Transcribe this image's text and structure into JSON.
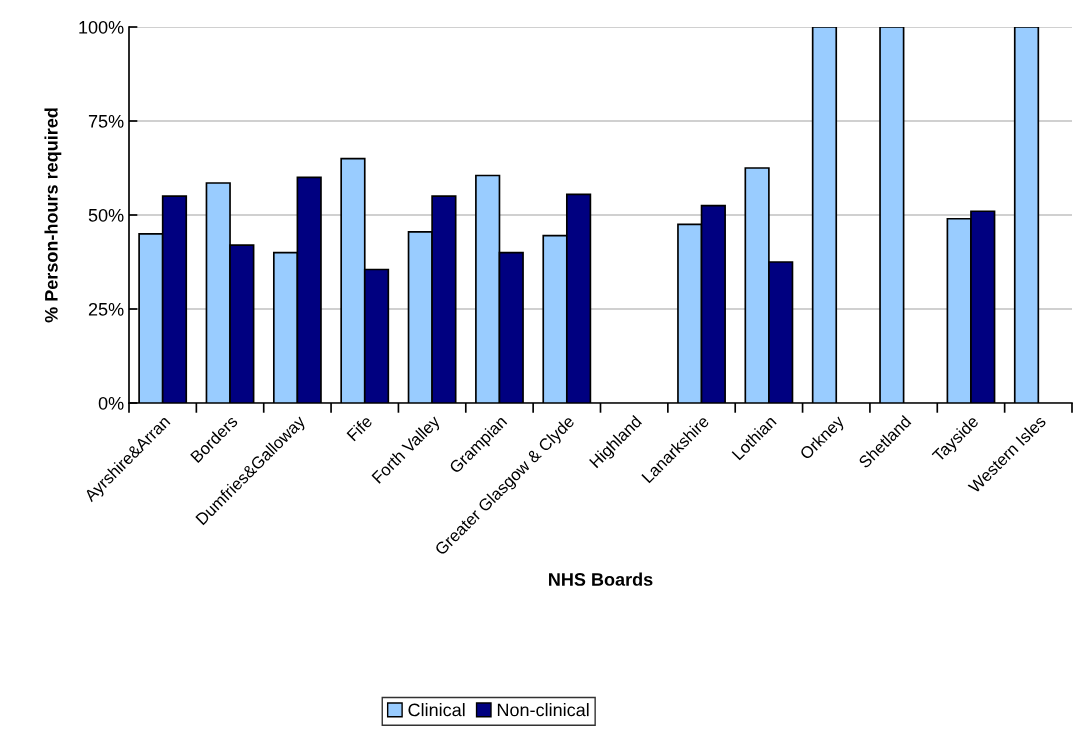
{
  "chart_data": {
    "type": "bar",
    "xlabel": "NHS Boards",
    "ylabel": "% Person-hours required",
    "categories": [
      "Ayrshire&Arran",
      "Borders",
      "Dumfries&Galloway",
      "Fife",
      "Forth Valley",
      "Grampian",
      "Greater Glasgow & Clyde",
      "Highland",
      "Lanarkshire",
      "Lothian",
      "Orkney",
      "Shetland",
      "Tayside",
      "Western Isles"
    ],
    "series": [
      {
        "name": "Clinical",
        "color": "#99ccff",
        "values": [
          45,
          58.5,
          40,
          65,
          45.5,
          60.5,
          44.5,
          null,
          47.5,
          62.5,
          100,
          100,
          49,
          100
        ]
      },
      {
        "name": "Non-clinical",
        "color": "#000080",
        "values": [
          55,
          42,
          60,
          35.5,
          55,
          40,
          55.5,
          null,
          52.5,
          37.5,
          null,
          null,
          51,
          null
        ]
      }
    ],
    "ylim": [
      0,
      100
    ],
    "yticks": [
      {
        "value": 0,
        "label": "0%"
      },
      {
        "value": 25,
        "label": "25%"
      },
      {
        "value": 50,
        "label": "50%"
      },
      {
        "value": 75,
        "label": "75%"
      },
      {
        "value": 100,
        "label": "100%"
      }
    ],
    "grid": "y",
    "legend": "bottom"
  }
}
